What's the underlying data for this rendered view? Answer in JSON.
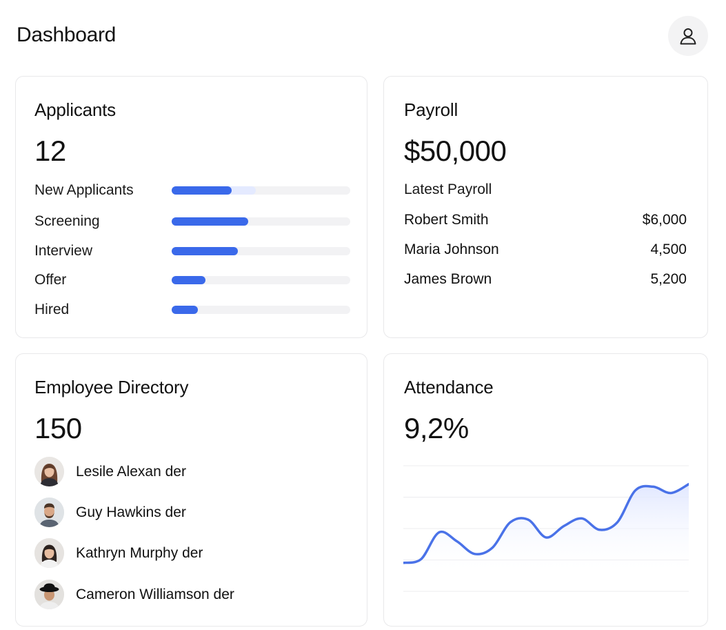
{
  "header": {
    "title": "Dashboard",
    "profile_icon": "user-icon"
  },
  "applicants": {
    "title": "Applicants",
    "count": "12",
    "stages": [
      {
        "label": "New Applicants",
        "fill": 0.335,
        "ghost": 0.47
      },
      {
        "label": "Screening",
        "fill": 0.43
      },
      {
        "label": "Interview",
        "fill": 0.37
      },
      {
        "label": "Offer",
        "fill": 0.19
      },
      {
        "label": "Hired",
        "fill": 0.145
      }
    ],
    "accent_color": "#3a69ea"
  },
  "payroll": {
    "title": "Payroll",
    "total": "$50,000",
    "subtitle": "Latest Payroll",
    "rows": [
      {
        "name": "Robert Smith",
        "amount": "$6,000"
      },
      {
        "name": "Maria Johnson",
        "amount": "4,500"
      },
      {
        "name": "James Brown",
        "amount": "5,200"
      }
    ]
  },
  "directory": {
    "title": "Employee Directory",
    "count": "150",
    "employees": [
      {
        "name": "Lesile Alexan der",
        "avatar": "woman-long-hair"
      },
      {
        "name": "Guy Hawkins der",
        "avatar": "man-beard"
      },
      {
        "name": "Kathryn Murphy der",
        "avatar": "woman-dark-hair"
      },
      {
        "name": "Cameron Williamson der",
        "avatar": "man-hat"
      }
    ]
  },
  "attendance": {
    "title": "Attendance",
    "value": "9,2%",
    "chart_data": {
      "type": "area",
      "x": [
        0,
        1,
        2,
        3,
        4,
        5,
        6,
        7,
        8,
        9,
        10,
        11,
        12,
        13,
        14,
        15,
        16
      ],
      "values": [
        0.23,
        0.26,
        0.47,
        0.4,
        0.3,
        0.35,
        0.55,
        0.57,
        0.43,
        0.52,
        0.58,
        0.49,
        0.55,
        0.8,
        0.83,
        0.78,
        0.85
      ],
      "ylim": [
        0,
        1
      ],
      "grid": true,
      "line_color": "#4a72e8",
      "fill_color": "#e6ebff"
    }
  }
}
